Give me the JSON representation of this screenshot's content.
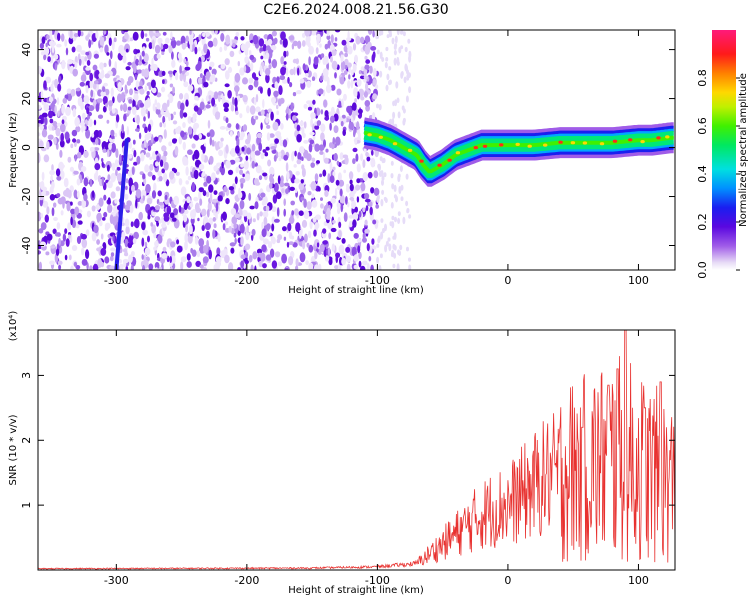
{
  "figure_title": "C2E6.2024.008.21.56.G30",
  "chart_data": [
    {
      "type": "heatmap",
      "title": "",
      "xlabel": "Height of straight line (km)",
      "ylabel": "Frequency (Hz)",
      "xlim": [
        -360,
        128
      ],
      "ylim": [
        -50,
        48
      ],
      "x_ticks": [
        -300,
        -200,
        -100,
        0,
        100
      ],
      "y_ticks": [
        -40,
        -20,
        0,
        20,
        40
      ],
      "x_tick_labels": [
        "-300",
        "-200",
        "-100",
        "0",
        "100"
      ],
      "y_tick_labels": [
        "-40",
        "-20",
        "0",
        "20",
        "40"
      ],
      "colorbar": {
        "label": "Normalized spectral amplitude",
        "range": [
          0,
          1
        ],
        "ticks": [
          0.0,
          0.2,
          0.4,
          0.6,
          0.8
        ],
        "tick_labels": [
          "0.0",
          "0.2",
          "0.4",
          "0.6",
          "0.8"
        ],
        "colormap": "rainbow (purple-blue-cyan-green-yellow-red-magenta)"
      },
      "noise_region_x": [
        -360,
        -100
      ],
      "slanted_streak": {
        "x": [
          -300,
          -292
        ],
        "y": [
          -50,
          3
        ]
      },
      "main_trace": {
        "x": [
          -110,
          -100,
          -90,
          -80,
          -70,
          -65,
          -60,
          -50,
          -40,
          -20,
          0,
          20,
          40,
          60,
          80,
          100,
          110,
          125
        ],
        "y": [
          6,
          5,
          3,
          0,
          -3,
          -7,
          -10,
          -7,
          -3,
          1,
          1,
          1,
          2,
          2,
          2,
          3,
          3,
          4
        ]
      },
      "grid": false
    },
    {
      "type": "line",
      "title": "",
      "xlabel": "Height of straight line (km)",
      "ylabel": "SNR (10 * v/v)",
      "y_scale_label": "(x10⁴)",
      "xlim": [
        -360,
        128
      ],
      "ylim": [
        0,
        3.7
      ],
      "x_ticks": [
        -300,
        -200,
        -100,
        0,
        100
      ],
      "y_ticks": [
        1,
        2,
        3
      ],
      "x_tick_labels": [
        "-300",
        "-200",
        "-100",
        "0",
        "100"
      ],
      "y_tick_labels": [
        "1",
        "2",
        "3"
      ],
      "series": [
        {
          "color": "#e8312f",
          "envelope_x": [
            -360,
            -150,
            -100,
            -70,
            -50,
            -40,
            -30,
            -20,
            -10,
            0,
            10,
            20,
            30,
            40,
            50,
            60,
            70,
            80,
            90,
            100,
            110,
            120,
            128
          ],
          "envelope_y": [
            0.02,
            0.03,
            0.05,
            0.1,
            0.4,
            0.55,
            0.7,
            0.85,
            0.95,
            1.0,
            1.15,
            1.3,
            1.45,
            1.5,
            1.55,
            1.6,
            1.65,
            1.7,
            1.7,
            1.6,
            1.5,
            1.4,
            1.3
          ],
          "peaks": [
            {
              "x": 90,
              "y": 3.7
            },
            {
              "x": 84,
              "y": 3.1
            },
            {
              "x": 117,
              "y": 2.9
            },
            {
              "x": 57,
              "y": 2.2
            },
            {
              "x": 77,
              "y": 2.85
            },
            {
              "x": 105,
              "y": 2.5
            }
          ]
        }
      ],
      "grid": false
    }
  ]
}
